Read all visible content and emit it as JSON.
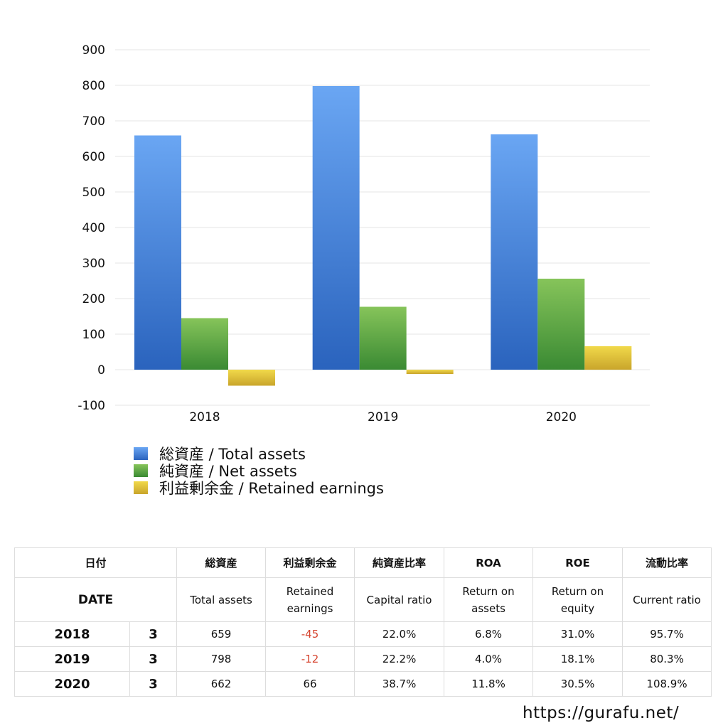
{
  "chart_data": {
    "type": "bar",
    "categories": [
      "2018",
      "2019",
      "2020"
    ],
    "series": [
      {
        "name": "総資産 / Total assets",
        "values": [
          659,
          798,
          662
        ],
        "color_top": "#6aa6f3",
        "color_bottom": "#2a63bd"
      },
      {
        "name": "純資産 / Net assets",
        "values": [
          145,
          177,
          256
        ],
        "color_top": "#86c45a",
        "color_bottom": "#3a8a33"
      },
      {
        "name": "利益剰余金 / Retained earnings",
        "values": [
          -45,
          -12,
          66
        ],
        "color_top": "#f1d94a",
        "color_bottom": "#c9a52b"
      }
    ],
    "ylim": [
      -100,
      900
    ],
    "yticks": [
      "900",
      "800",
      "700",
      "600",
      "500",
      "400",
      "300",
      "200",
      "100",
      "0",
      "-100"
    ],
    "grid": true,
    "legend": "bottom-left"
  },
  "table": {
    "headers_jp": [
      "日付",
      "総資産",
      "利益剰余金",
      "純資産比率",
      "ROA",
      "ROE",
      "流動比率"
    ],
    "headers_en": [
      "DATE",
      "Total assets",
      "Retained earnings",
      "Capital ratio",
      "Return on assets",
      "Return on equity",
      "Current ratio"
    ],
    "rows": [
      {
        "year": "2018",
        "month": "3",
        "total_assets": "659",
        "retained_earnings": "-45",
        "capital_ratio": "22.0%",
        "roa": "6.8%",
        "roe": "31.0%",
        "current_ratio": "95.7%"
      },
      {
        "year": "2019",
        "month": "3",
        "total_assets": "798",
        "retained_earnings": "-12",
        "capital_ratio": "22.2%",
        "roa": "4.0%",
        "roe": "18.1%",
        "current_ratio": "80.3%"
      },
      {
        "year": "2020",
        "month": "3",
        "total_assets": "662",
        "retained_earnings": "66",
        "capital_ratio": "38.7%",
        "roa": "11.8%",
        "roe": "30.5%",
        "current_ratio": "108.9%"
      }
    ],
    "negative_color": "#d64530"
  },
  "footer": {
    "url": "https://gurafu.net/"
  }
}
